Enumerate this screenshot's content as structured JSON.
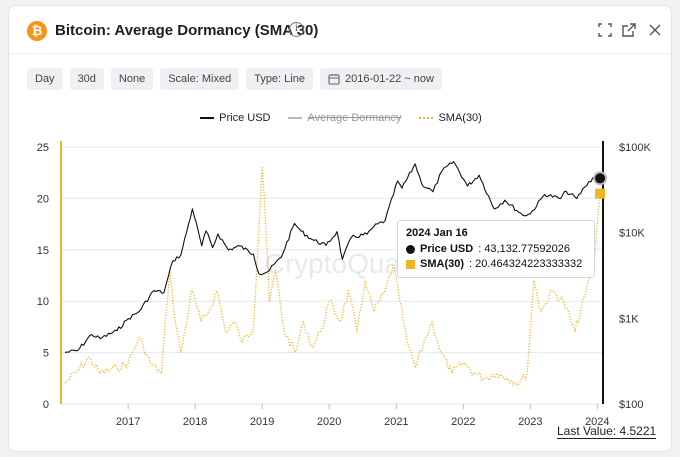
{
  "header": {
    "coin_symbol": "₿",
    "title": "Bitcoin: Average Dormancy (SMA 30)",
    "info_glyph": "i",
    "icons": [
      "expand-icon",
      "external-link-icon",
      "close-icon"
    ]
  },
  "toolbar": {
    "interval": "Day",
    "window": "30d",
    "smoothing": "None",
    "scale": "Scale: Mixed",
    "type": "Type: Line",
    "date_range": "2016-01-22 ~ now"
  },
  "legend": {
    "price": "Price USD",
    "dormancy": "Average Dormancy",
    "sma": "SMA(30)"
  },
  "colors": {
    "price": "#111111",
    "dormancy": "#bbbbbb",
    "sma": "#f0b429",
    "grid": "#e6e8eb"
  },
  "watermark": "CryptoQuant",
  "tooltip": {
    "date": "2024 Jan 16",
    "price_label": "Price USD",
    "price_value": ": 43,132.77592026",
    "sma_label": "SMA(30)",
    "sma_value": ": 20.464324223333332"
  },
  "last_value": "Last Value: 4.5221",
  "chart_data": {
    "type": "line",
    "x_ticks": [
      "2017",
      "2018",
      "2019",
      "2020",
      "2021",
      "2022",
      "2023",
      "2024"
    ],
    "y_left": {
      "ticks": [
        "0",
        "5",
        "10",
        "15",
        "20",
        "25"
      ],
      "range": [
        0,
        25
      ],
      "scale": "linear"
    },
    "y_right": {
      "ticks": [
        "$100",
        "$1K",
        "$10K",
        "$100K"
      ],
      "range": [
        100,
        100000
      ],
      "scale": "log"
    },
    "grid": "horizontal",
    "legend_position": "top-center",
    "series": [
      {
        "name": "Price USD",
        "axis": "right",
        "points": [
          [
            "2016-01-22",
            400
          ],
          [
            "2016-04-01",
            420
          ],
          [
            "2016-06-15",
            650
          ],
          [
            "2016-08-01",
            580
          ],
          [
            "2016-11-01",
            720
          ],
          [
            "2017-01-01",
            990
          ],
          [
            "2017-03-01",
            1200
          ],
          [
            "2017-05-20",
            2100
          ],
          [
            "2017-07-15",
            2000
          ],
          [
            "2017-09-01",
            4700
          ],
          [
            "2017-10-15",
            5500
          ],
          [
            "2017-12-17",
            19000
          ],
          [
            "2018-02-06",
            7000
          ],
          [
            "2018-03-01",
            10500
          ],
          [
            "2018-04-06",
            6700
          ],
          [
            "2018-05-05",
            9700
          ],
          [
            "2018-07-01",
            6300
          ],
          [
            "2018-09-01",
            7000
          ],
          [
            "2018-11-15",
            5600
          ],
          [
            "2018-12-15",
            3300
          ],
          [
            "2019-02-01",
            3500
          ],
          [
            "2019-04-15",
            5200
          ],
          [
            "2019-06-26",
            12800
          ],
          [
            "2019-08-01",
            10400
          ],
          [
            "2019-10-01",
            8300
          ],
          [
            "2019-12-15",
            7100
          ],
          [
            "2020-02-13",
            10300
          ],
          [
            "2020-03-13",
            4900
          ],
          [
            "2020-05-01",
            8800
          ],
          [
            "2020-07-25",
            9600
          ],
          [
            "2020-09-01",
            11800
          ],
          [
            "2020-11-01",
            13800
          ],
          [
            "2021-01-08",
            40000
          ],
          [
            "2021-02-01",
            33000
          ],
          [
            "2021-04-14",
            63500
          ],
          [
            "2021-05-20",
            37000
          ],
          [
            "2021-07-20",
            30000
          ],
          [
            "2021-09-06",
            52000
          ],
          [
            "2021-11-09",
            67500
          ],
          [
            "2022-01-24",
            35000
          ],
          [
            "2022-03-28",
            47000
          ],
          [
            "2022-06-18",
            19000
          ],
          [
            "2022-08-15",
            24000
          ],
          [
            "2022-11-21",
            16000
          ],
          [
            "2023-01-01",
            16600
          ],
          [
            "2023-03-20",
            28000
          ],
          [
            "2023-06-15",
            25000
          ],
          [
            "2023-07-15",
            30500
          ],
          [
            "2023-09-11",
            25000
          ],
          [
            "2023-10-24",
            34000
          ],
          [
            "2023-12-08",
            43800
          ],
          [
            "2024-01-16",
            43132.78
          ]
        ]
      },
      {
        "name": "SMA(30)",
        "axis": "left",
        "points": [
          [
            "2016-01-22",
            2
          ],
          [
            "2016-04-01",
            3.2
          ],
          [
            "2016-06-01",
            4.5
          ],
          [
            "2016-08-01",
            3
          ],
          [
            "2016-11-01",
            3.5
          ],
          [
            "2017-01-01",
            4
          ],
          [
            "2017-03-01",
            6.5
          ],
          [
            "2017-05-01",
            4
          ],
          [
            "2017-07-01",
            3
          ],
          [
            "2017-08-15",
            13
          ],
          [
            "2017-09-15",
            8
          ],
          [
            "2017-10-15",
            5
          ],
          [
            "2017-12-15",
            11
          ],
          [
            "2018-02-01",
            8
          ],
          [
            "2018-03-15",
            9
          ],
          [
            "2018-05-01",
            11
          ],
          [
            "2018-06-15",
            7
          ],
          [
            "2018-08-01",
            8
          ],
          [
            "2018-09-15",
            6
          ],
          [
            "2018-11-15",
            7.5
          ],
          [
            "2018-12-31",
            23
          ],
          [
            "2019-01-10",
            21
          ],
          [
            "2019-02-10",
            10
          ],
          [
            "2019-03-15",
            13
          ],
          [
            "2019-05-01",
            7
          ],
          [
            "2019-07-01",
            5
          ],
          [
            "2019-08-15",
            8
          ],
          [
            "2019-10-01",
            5.5
          ],
          [
            "2019-11-15",
            7
          ],
          [
            "2020-01-01",
            10
          ],
          [
            "2020-03-01",
            8
          ],
          [
            "2020-04-15",
            11
          ],
          [
            "2020-06-01",
            7
          ],
          [
            "2020-07-15",
            12
          ],
          [
            "2020-09-01",
            9
          ],
          [
            "2020-11-01",
            11
          ],
          [
            "2020-12-15",
            13.5
          ],
          [
            "2021-01-20",
            10
          ],
          [
            "2021-03-01",
            6
          ],
          [
            "2021-04-15",
            3.5
          ],
          [
            "2021-06-01",
            6
          ],
          [
            "2021-07-15",
            8
          ],
          [
            "2021-09-01",
            5
          ],
          [
            "2021-11-01",
            3
          ],
          [
            "2022-01-01",
            4
          ],
          [
            "2022-03-01",
            3
          ],
          [
            "2022-05-01",
            2.5
          ],
          [
            "2022-07-01",
            3
          ],
          [
            "2022-09-01",
            2.5
          ],
          [
            "2022-11-01",
            2
          ],
          [
            "2022-12-15",
            3
          ],
          [
            "2023-01-20",
            12
          ],
          [
            "2023-03-01",
            9
          ],
          [
            "2023-05-01",
            11
          ],
          [
            "2023-07-01",
            10
          ],
          [
            "2023-09-01",
            7
          ],
          [
            "2023-11-01",
            11
          ],
          [
            "2023-12-15",
            14
          ],
          [
            "2024-01-16",
            20.46
          ]
        ]
      },
      {
        "name": "Average Dormancy",
        "axis": "left",
        "hidden": true,
        "points": []
      }
    ],
    "annotations": [
      {
        "text": "Last Value: 4.5221",
        "value": 4.5221
      }
    ]
  }
}
